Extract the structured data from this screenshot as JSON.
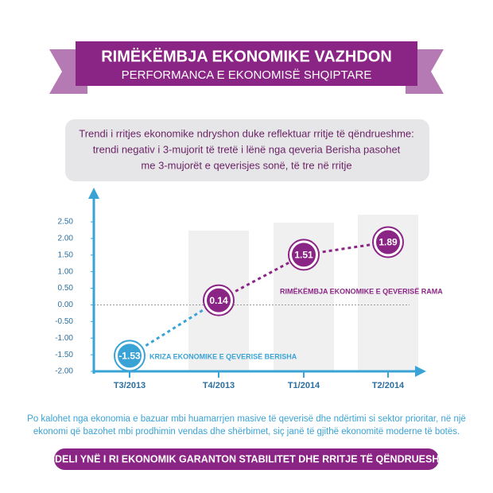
{
  "header": {
    "title": "RIMËKËMBJA EKONOMIKE VAZHDON",
    "subtitle": "PERFORMANCA E EKONOMISË SHQIPTARE"
  },
  "callout": {
    "lines": [
      "Trendi i rritjes ekonomike ndryshon duke reflektuar rritje të qëndrueshme:",
      "trendi negativ i 3-mujorit të tretë i lënë nga qeveria Berisha pasohet",
      "me 3-mujorët e qeverisjes sonë, të tre në rritje"
    ]
  },
  "chart_data": {
    "type": "line",
    "categories": [
      "T3/2013",
      "T4/2013",
      "T1/2014",
      "T2/2014"
    ],
    "values": [
      -1.53,
      0.14,
      1.51,
      1.89
    ],
    "colors": [
      "#3aa3d6",
      "#8b2585",
      "#8b2585",
      "#8b2585"
    ],
    "ylim": [
      -2,
      2.5
    ],
    "yticks": [
      {
        "value": 2.5,
        "label": "2.50"
      },
      {
        "value": 2,
        "label": "2.00"
      },
      {
        "value": 1.5,
        "label": "1.50"
      },
      {
        "value": 1,
        "label": "1.00"
      },
      {
        "value": 0.5,
        "label": "0.50"
      },
      {
        "value": 0,
        "label": "0.00"
      },
      {
        "value": -0.5,
        "label": "-0.50"
      },
      {
        "value": -1,
        "label": "-1.00"
      },
      {
        "value": -1.5,
        "label": "-1.50"
      },
      {
        "value": -2,
        "label": "-2.00"
      }
    ],
    "annotations": [
      "KRIZA EKONOMIKE E QEVERISË BERISHA",
      "RIMËKËMBJA EKONOMIKE E QEVERISË RAMA"
    ]
  },
  "footer": {
    "lines": [
      "Po kalohet nga ekonomia e bazuar mbi huamarrjen masive të qeverisë dhe ndërtimi si sektor prioritar, në një",
      "ekonomi që bazohet mbi prodhimin vendas dhe shërbimet, siç janë të gjithë ekonomitë moderne të botës."
    ],
    "banner": "MODELI YNË I RI EKONOMIK GARANTON STABILITET DHE RRITJE TË QËNDRUESHME"
  }
}
